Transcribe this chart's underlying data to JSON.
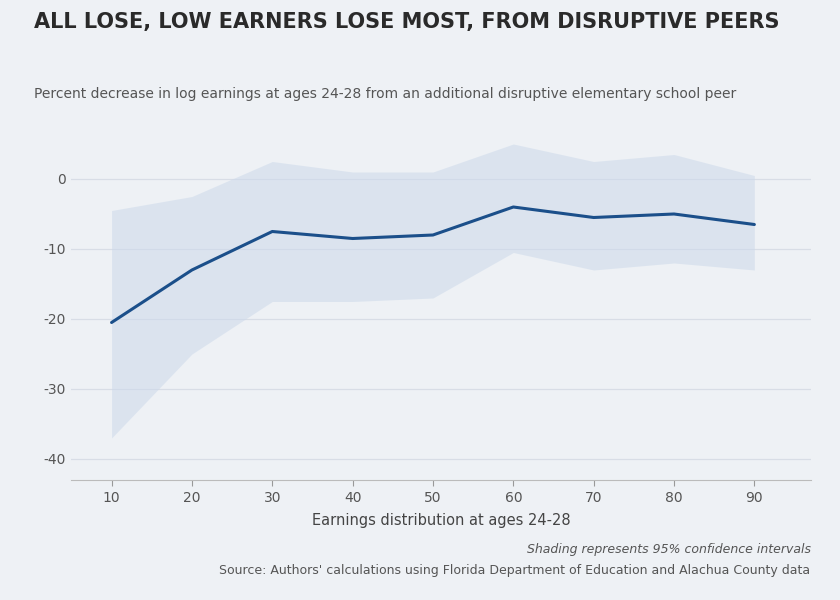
{
  "title": "ALL LOSE, LOW EARNERS LOSE MOST, FROM DISRUPTIVE PEERS",
  "subtitle": "Percent decrease in log earnings at ages 24-28 from an additional disruptive elementary school peer",
  "xlabel": "Earnings distribution at ages 24-28",
  "footnote_italic": "Shading represents 95% confidence intervals",
  "footnote_normal": "Source: Authors' calculations using Florida Department of Education and Alachua County data",
  "x": [
    10,
    20,
    30,
    40,
    50,
    60,
    70,
    80,
    90
  ],
  "y": [
    -20.5,
    -13.0,
    -7.5,
    -8.5,
    -8.0,
    -4.0,
    -5.5,
    -5.0,
    -6.5
  ],
  "ci_upper": [
    -4.5,
    -2.5,
    2.5,
    1.0,
    1.0,
    5.0,
    2.5,
    3.5,
    0.5
  ],
  "ci_lower": [
    -37.0,
    -25.0,
    -17.5,
    -17.5,
    -17.0,
    -10.5,
    -13.0,
    -12.0,
    -13.0
  ],
  "line_color": "#1b4f8a",
  "fill_color": "#ccd9ea",
  "fill_alpha": 0.55,
  "ylim": [
    -43,
    5
  ],
  "xlim": [
    5,
    97
  ],
  "yticks": [
    0,
    -10,
    -20,
    -30,
    -40
  ],
  "xticks": [
    10,
    20,
    30,
    40,
    50,
    60,
    70,
    80,
    90
  ],
  "bg_color": "#eef1f5",
  "plot_bg_color": "#eef1f5",
  "title_fontsize": 15,
  "subtitle_fontsize": 10,
  "tick_fontsize": 10,
  "xlabel_fontsize": 10.5,
  "footnote_fontsize": 9
}
